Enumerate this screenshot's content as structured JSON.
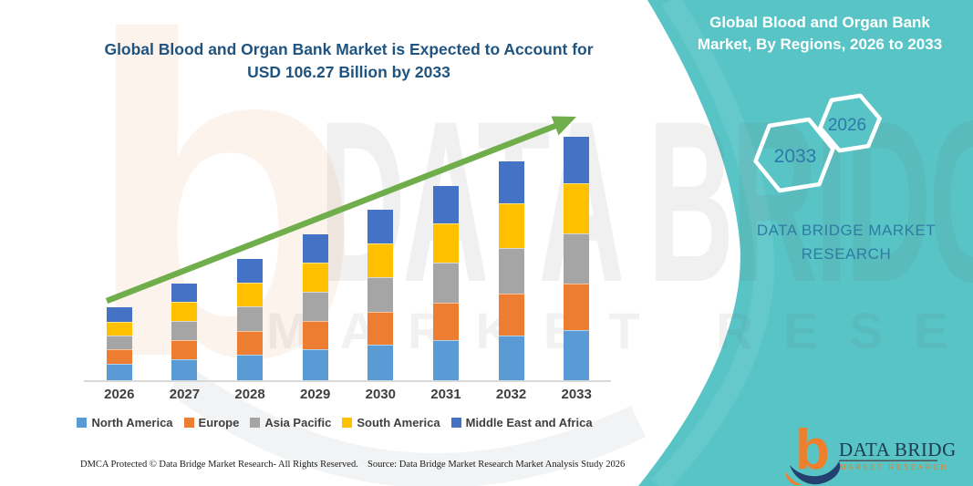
{
  "chart": {
    "title_lines": [
      "Global Blood and Organ Bank Market is Expected to Account for",
      "USD 106.27 Billion by 2033"
    ]
  },
  "chart_data": {
    "type": "bar",
    "stacked": true,
    "title": "Global Blood and Organ Bank Market is Expected to Account for USD 106.27 Billion by 2033",
    "unit": "USD Billion",
    "categories": [
      "2026",
      "2027",
      "2028",
      "2029",
      "2030",
      "2031",
      "2032",
      "2033"
    ],
    "series": [
      {
        "name": "North America",
        "color": "#5B9BD5",
        "values": [
          7.0,
          9.1,
          11.2,
          13.4,
          15.5,
          17.6,
          19.7,
          21.9
        ]
      },
      {
        "name": "Europe",
        "color": "#ED7D31",
        "values": [
          6.6,
          8.5,
          10.5,
          12.4,
          14.4,
          16.4,
          18.3,
          20.3
        ]
      },
      {
        "name": "Asia Pacific",
        "color": "#A5A5A5",
        "values": [
          6.0,
          8.3,
          10.6,
          12.9,
          15.1,
          17.4,
          19.7,
          22.0
        ]
      },
      {
        "name": "South America",
        "color": "#FFC000",
        "values": [
          6.0,
          8.2,
          10.4,
          12.7,
          14.9,
          17.1,
          19.4,
          21.6
        ]
      },
      {
        "name": "Middle East and Africa",
        "color": "#4472C4",
        "values": [
          6.2,
          8.2,
          10.3,
          12.3,
          14.4,
          16.4,
          18.5,
          20.5
        ]
      }
    ],
    "totals_estimated": [
      31.8,
      42.3,
      53.0,
      63.7,
      74.3,
      84.9,
      95.6,
      106.27
    ],
    "highlight": {
      "year": "2033",
      "total": 106.27
    },
    "legend_position": "bottom",
    "y_axis_visible": false,
    "grid": false,
    "trend_arrow": true
  },
  "footer": {
    "left": "DMCA Protected © Data Bridge Market Research-  All Rights Reserved.",
    "right": "Source: Data Bridge Market Research  Market Analysis Study 2026"
  },
  "right_panel": {
    "title_lines": [
      "Global Blood and Organ Bank",
      "Market, By Regions, 2026 to 2033"
    ],
    "hexagon_large_label": "2033",
    "hexagon_small_label": "2026",
    "brand_lines": [
      "DATA BRIDGE MARKET",
      "RESEARCH"
    ]
  },
  "logo": {
    "glyph": "b",
    "name_text": "DATA BRIDGE",
    "sub_text": "MARKET RESEARCH"
  },
  "watermark": {
    "glyph": "b",
    "line1": "DATA BRIDGE",
    "line2": "MARKET RESEARCH"
  },
  "colors": {
    "teal_panel": "#58C4C6",
    "title_navy": "#1F5380",
    "arrow_green": "#6FAE4B",
    "hex_label_blue": "#2E79A8",
    "brand_text_blue": "#2F7CA3",
    "axis_label_gray": "#3F3F3F",
    "logo_orange": "#EE7F2D",
    "logo_navy": "#24406E",
    "axis_line_gray": "#D9D9D9"
  }
}
